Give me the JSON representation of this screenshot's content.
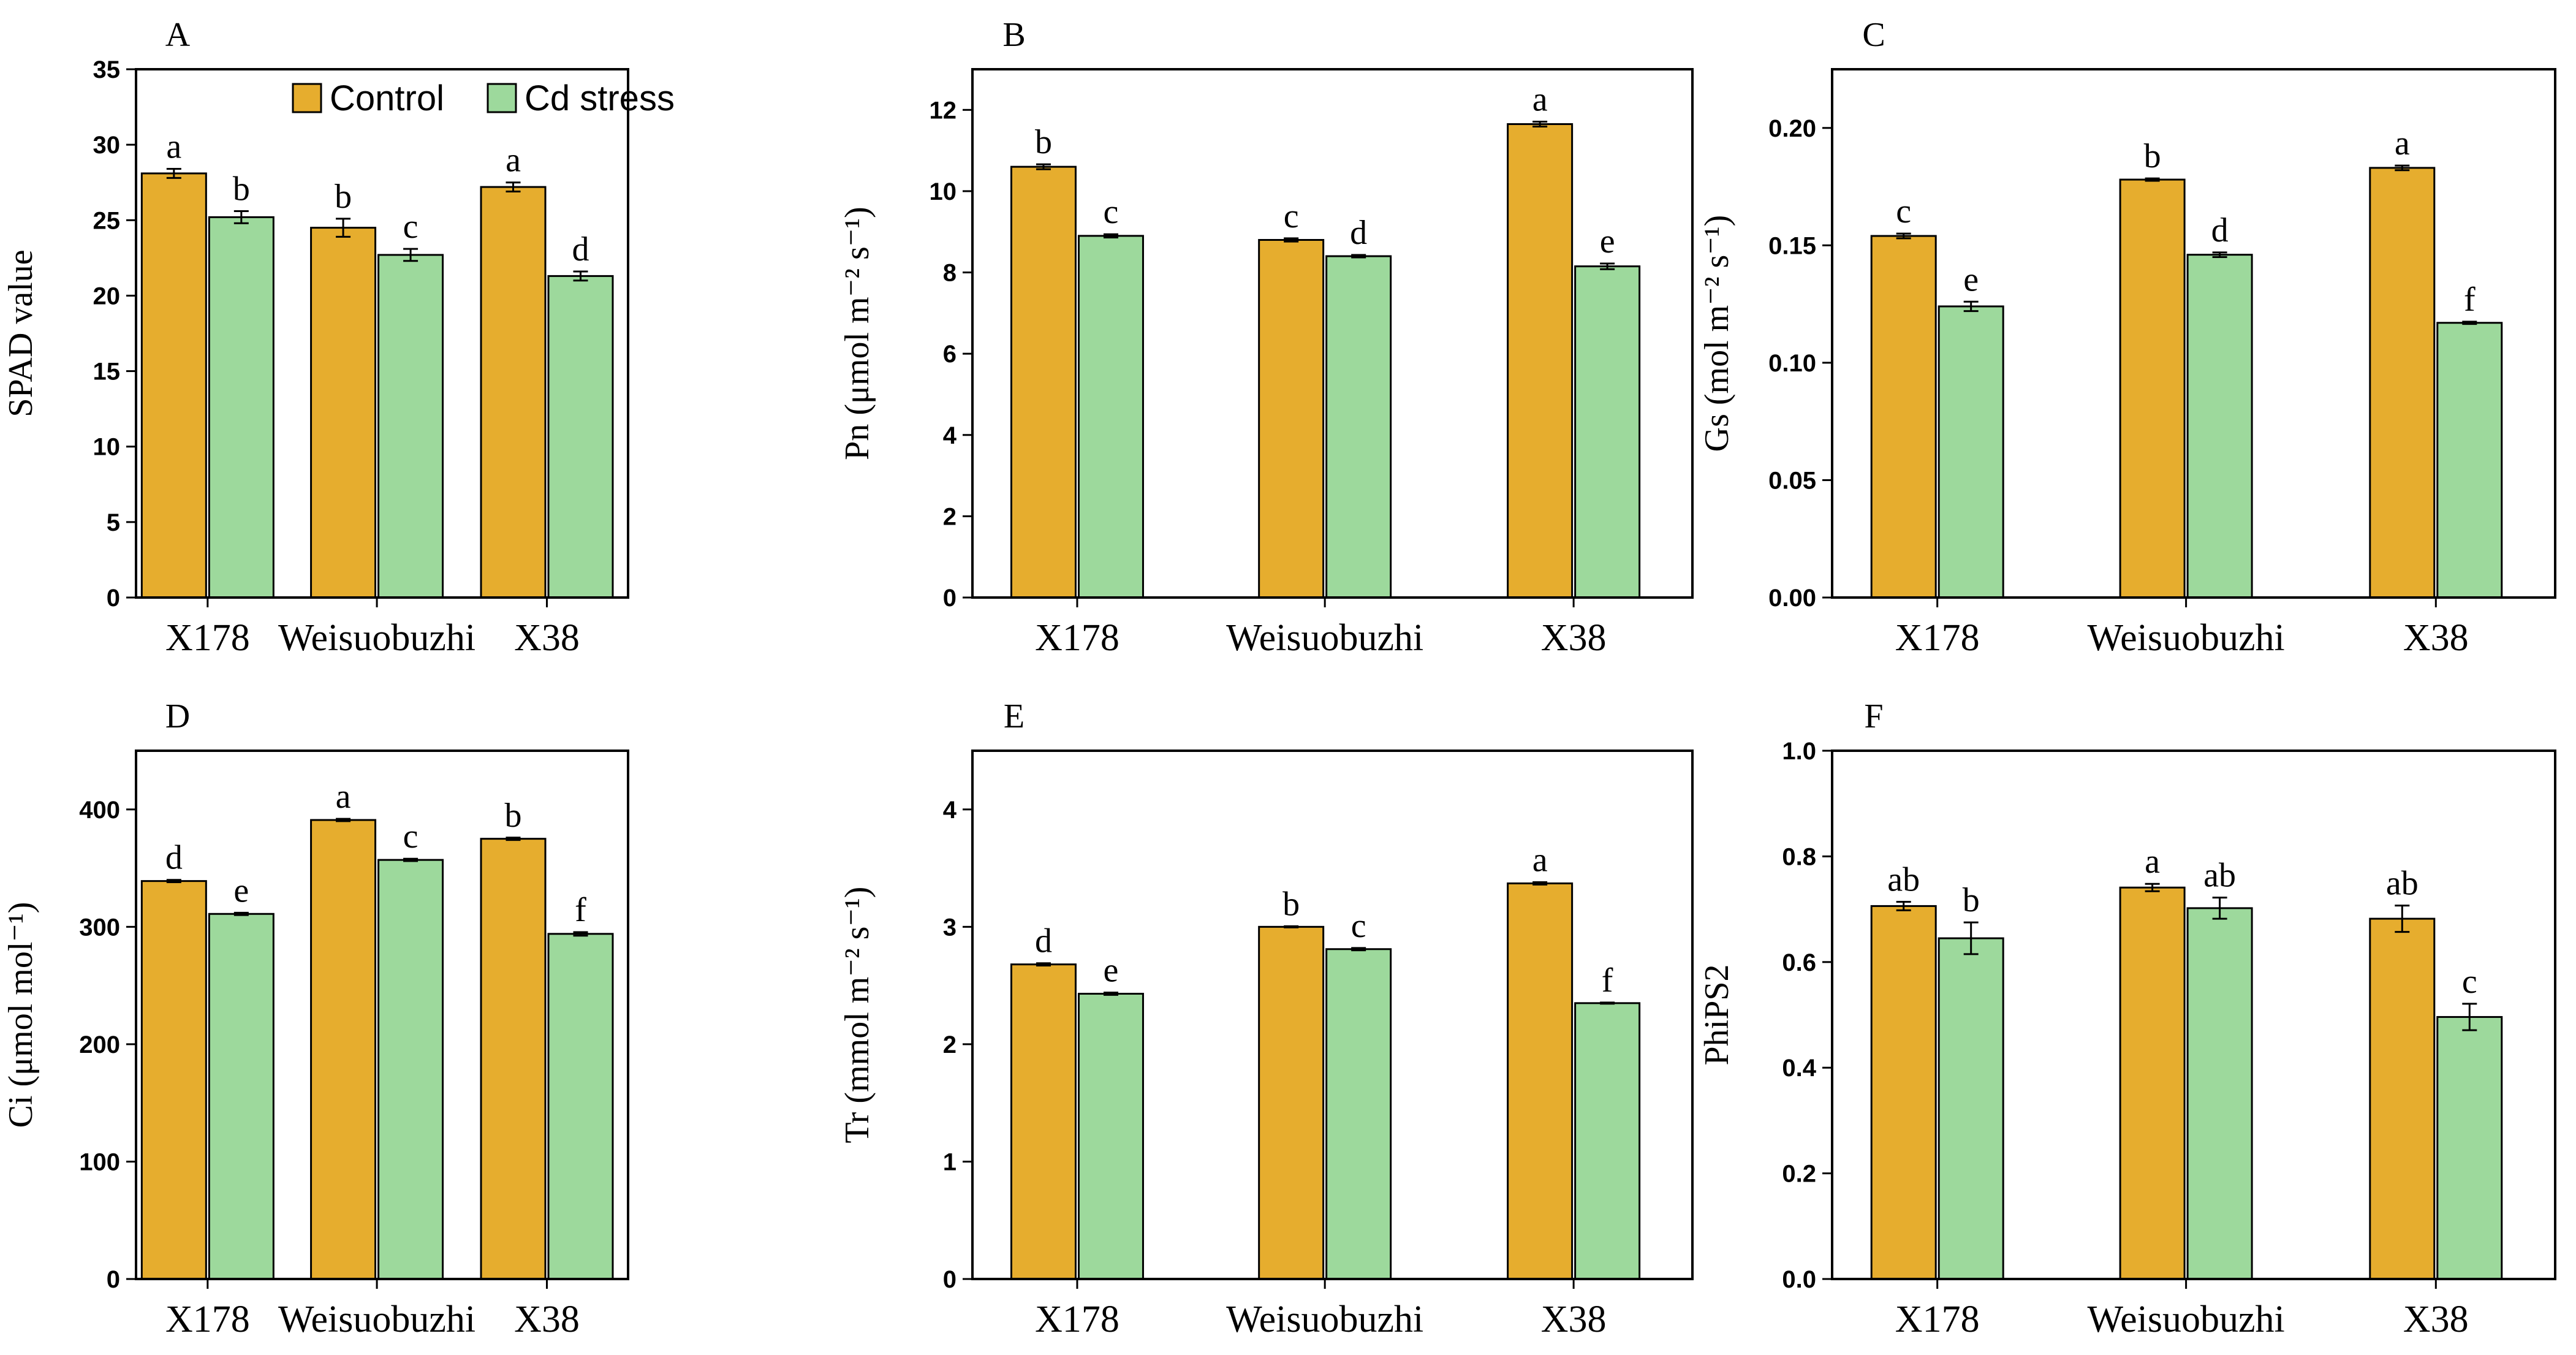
{
  "legend": {
    "control": "Control",
    "cd": "Cd stress"
  },
  "colors": {
    "control": "#E6AD2E",
    "cd": "#9DD99C",
    "axis": "#000000"
  },
  "chart_data": [
    {
      "type": "bar",
      "panel": "A",
      "ylabel": "SPAD value",
      "ylabel_sup": [],
      "ylim": [
        0,
        35
      ],
      "yticks": [
        0,
        5,
        10,
        15,
        20,
        25,
        30,
        35
      ],
      "ytick_labels": [
        "0",
        "5",
        "10",
        "15",
        "20",
        "25",
        "30",
        "35"
      ],
      "categories": [
        "X178",
        "Weisuobuzhi",
        "X38"
      ],
      "series": [
        {
          "name": "Control",
          "values": [
            28.1,
            24.5,
            27.2
          ],
          "errors": [
            0.3,
            0.6,
            0.3
          ],
          "letters": [
            "a",
            "b",
            "a"
          ]
        },
        {
          "name": "Cd stress",
          "values": [
            25.2,
            22.7,
            21.3
          ],
          "errors": [
            0.4,
            0.4,
            0.3
          ],
          "letters": [
            "b",
            "c",
            "d"
          ]
        }
      ]
    },
    {
      "type": "bar",
      "panel": "B",
      "ylabel": "Pn (μmol m⁻² s⁻¹)",
      "ylabel_sup": [],
      "ylim": [
        0,
        13
      ],
      "yticks": [
        0,
        2,
        4,
        6,
        8,
        10,
        12
      ],
      "ytick_labels": [
        "0",
        "2",
        "4",
        "6",
        "8",
        "10",
        "12"
      ],
      "categories": [
        "X178",
        "Weisuobuzhi",
        "X38"
      ],
      "series": [
        {
          "name": "Control",
          "values": [
            10.6,
            8.8,
            11.65
          ],
          "errors": [
            0.06,
            0.04,
            0.06
          ],
          "letters": [
            "b",
            "c",
            "a"
          ]
        },
        {
          "name": "Cd stress",
          "values": [
            8.9,
            8.4,
            8.15
          ],
          "errors": [
            0.04,
            0.03,
            0.07
          ],
          "letters": [
            "c",
            "d",
            "e"
          ]
        }
      ]
    },
    {
      "type": "bar",
      "panel": "C",
      "ylabel": "Gs (mol m⁻² s⁻¹)",
      "ylabel_sup": [],
      "ylim": [
        0,
        0.225
      ],
      "yticks": [
        0,
        0.05,
        0.1,
        0.15,
        0.2
      ],
      "ytick_labels": [
        "0.00",
        "0.05",
        "0.10",
        "0.15",
        "0.20"
      ],
      "categories": [
        "X178",
        "Weisuobuzhi",
        "X38"
      ],
      "series": [
        {
          "name": "Control",
          "values": [
            0.154,
            0.178,
            0.183
          ],
          "errors": [
            0.001,
            0.0005,
            0.001
          ],
          "letters": [
            "c",
            "b",
            "a"
          ]
        },
        {
          "name": "Cd stress",
          "values": [
            0.124,
            0.146,
            0.117
          ],
          "errors": [
            0.002,
            0.001,
            0.0005
          ],
          "letters": [
            "e",
            "d",
            "f"
          ]
        }
      ]
    },
    {
      "type": "bar",
      "panel": "D",
      "ylabel": "Ci (μmol mol⁻¹)",
      "ylabel_sup": [],
      "ylim": [
        0,
        450
      ],
      "yticks": [
        0,
        100,
        200,
        300,
        400
      ],
      "ytick_labels": [
        "0",
        "100",
        "200",
        "300",
        "400"
      ],
      "categories": [
        "X178",
        "Weisuobuzhi",
        "X38"
      ],
      "series": [
        {
          "name": "Control",
          "values": [
            339,
            391,
            375
          ],
          "errors": [
            1,
            1,
            1
          ],
          "letters": [
            "d",
            "a",
            "b"
          ]
        },
        {
          "name": "Cd stress",
          "values": [
            311,
            357,
            294
          ],
          "errors": [
            1,
            1,
            1.5
          ],
          "letters": [
            "e",
            "c",
            "f"
          ]
        }
      ]
    },
    {
      "type": "bar",
      "panel": "E",
      "ylabel": "Tr (mmol m⁻² s⁻¹)",
      "ylabel_sup": [],
      "ylim": [
        0,
        4.5
      ],
      "yticks": [
        0,
        1,
        2,
        3,
        4
      ],
      "ytick_labels": [
        "0",
        "1",
        "2",
        "3",
        "4"
      ],
      "categories": [
        "X178",
        "Weisuobuzhi",
        "X38"
      ],
      "series": [
        {
          "name": "Control",
          "values": [
            2.68,
            3.0,
            3.37
          ],
          "errors": [
            0.01,
            0.005,
            0.01
          ],
          "letters": [
            "d",
            "b",
            "a"
          ]
        },
        {
          "name": "Cd stress",
          "values": [
            2.43,
            2.81,
            2.35
          ],
          "errors": [
            0.01,
            0.01,
            0.005
          ],
          "letters": [
            "e",
            "c",
            "f"
          ]
        }
      ]
    },
    {
      "type": "bar",
      "panel": "F",
      "ylabel": "PhiPS2",
      "ylabel_sup": [],
      "ylim": [
        0,
        1.0
      ],
      "yticks": [
        0,
        0.2,
        0.4,
        0.6,
        0.8,
        1.0
      ],
      "ytick_labels": [
        "0.0",
        "0.2",
        "0.4",
        "0.6",
        "0.8",
        "1.0"
      ],
      "categories": [
        "X178",
        "Weisuobuzhi",
        "X38"
      ],
      "series": [
        {
          "name": "Control",
          "values": [
            0.706,
            0.741,
            0.682
          ],
          "errors": [
            0.008,
            0.007,
            0.025
          ],
          "letters": [
            "ab",
            "a",
            "ab"
          ]
        },
        {
          "name": "Cd stress",
          "values": [
            0.645,
            0.702,
            0.496
          ],
          "errors": [
            0.03,
            0.02,
            0.025
          ],
          "letters": [
            "b",
            "ab",
            "c"
          ]
        }
      ]
    }
  ]
}
